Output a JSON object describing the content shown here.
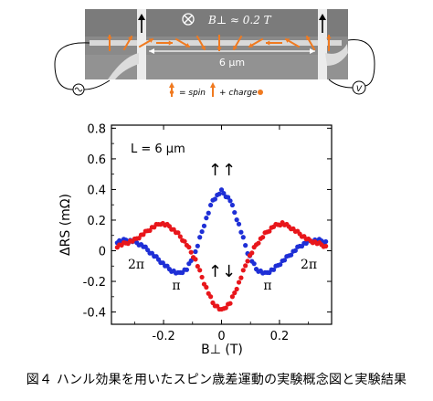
{
  "figure": {
    "caption": "図４ ハンル効果を用いたスピン歳差運動の実験概念図と実験結果"
  },
  "device": {
    "field_label": "B⊥ ≈ 0.2 T",
    "distance_label": "6 μm",
    "legend_spin": "= spin",
    "legend_charge": "+ charge",
    "voltmeter_label": "V"
  },
  "chart_data": {
    "type": "scatter",
    "xlabel": "B⊥ (T)",
    "ylabel": "ΔRS (mΩ)",
    "xlim": [
      -0.38,
      0.38
    ],
    "ylim": [
      -0.48,
      0.82
    ],
    "xticks": [
      -0.2,
      0,
      0.2
    ],
    "xtick_labels": [
      "-0.2",
      "0",
      "0.2"
    ],
    "yticks": [
      -0.4,
      -0.2,
      0,
      0.2,
      0.4,
      0.6,
      0.8
    ],
    "ytick_labels": [
      "-0.4",
      "-0.2",
      "0",
      "0.2",
      "0.4",
      "0.6",
      "0.8"
    ],
    "annotations": {
      "length": "L = 6 μm",
      "parallel": "↑↑",
      "antiparallel": "↑↓",
      "two_pi_left": "2π",
      "two_pi_right": "2π",
      "pi_left": "π",
      "pi_right": "π"
    },
    "series": [
      {
        "color": "#1e2fd6",
        "points": [
          [
            -0.36,
            0.06
          ],
          [
            -0.33,
            0.07
          ],
          [
            -0.3,
            0.06
          ],
          [
            -0.27,
            0.03
          ],
          [
            -0.24,
            -0.02
          ],
          [
            -0.21,
            -0.07
          ],
          [
            -0.18,
            -0.12
          ],
          [
            -0.15,
            -0.15
          ],
          [
            -0.12,
            -0.12
          ],
          [
            -0.09,
            -0.01
          ],
          [
            -0.06,
            0.17
          ],
          [
            -0.03,
            0.33
          ],
          [
            0.0,
            0.39
          ],
          [
            0.03,
            0.33
          ],
          [
            0.06,
            0.17
          ],
          [
            0.09,
            -0.01
          ],
          [
            0.12,
            -0.12
          ],
          [
            0.15,
            -0.15
          ],
          [
            0.18,
            -0.12
          ],
          [
            0.21,
            -0.07
          ],
          [
            0.24,
            -0.02
          ],
          [
            0.27,
            0.03
          ],
          [
            0.3,
            0.06
          ],
          [
            0.33,
            0.07
          ],
          [
            0.36,
            0.06
          ]
        ]
      },
      {
        "color": "#e8161b",
        "points": [
          [
            -0.36,
            0.03
          ],
          [
            -0.33,
            0.05
          ],
          [
            -0.3,
            0.07
          ],
          [
            -0.27,
            0.11
          ],
          [
            -0.24,
            0.15
          ],
          [
            -0.21,
            0.18
          ],
          [
            -0.18,
            0.16
          ],
          [
            -0.15,
            0.11
          ],
          [
            -0.12,
            0.04
          ],
          [
            -0.09,
            -0.06
          ],
          [
            -0.06,
            -0.21
          ],
          [
            -0.03,
            -0.34
          ],
          [
            0.0,
            -0.39
          ],
          [
            0.03,
            -0.34
          ],
          [
            0.06,
            -0.21
          ],
          [
            0.09,
            -0.06
          ],
          [
            0.12,
            0.04
          ],
          [
            0.15,
            0.11
          ],
          [
            0.18,
            0.16
          ],
          [
            0.21,
            0.18
          ],
          [
            0.24,
            0.15
          ],
          [
            0.27,
            0.11
          ],
          [
            0.3,
            0.07
          ],
          [
            0.33,
            0.05
          ],
          [
            0.36,
            0.03
          ]
        ]
      }
    ]
  }
}
